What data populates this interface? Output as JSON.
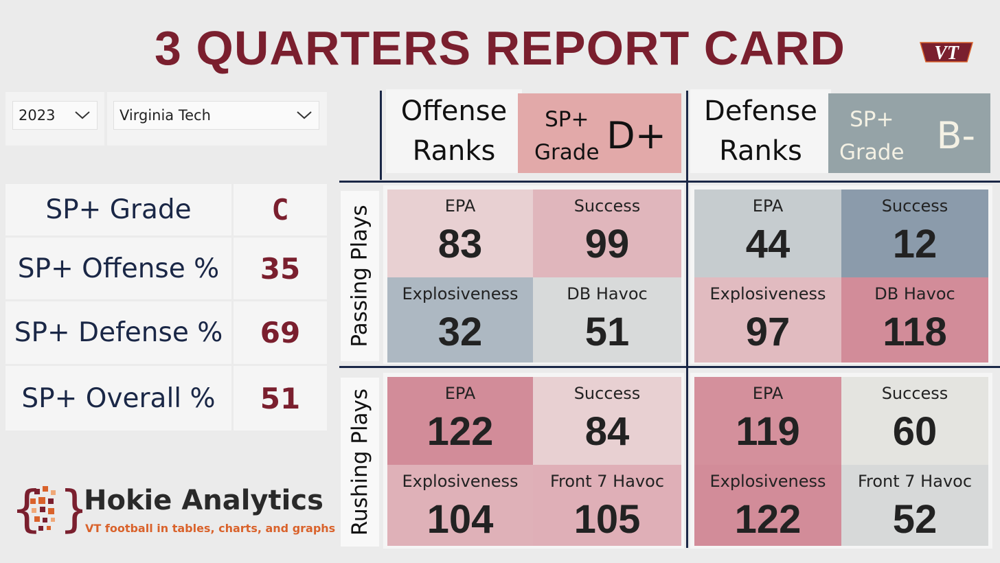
{
  "title": "3 QUARTERS REPORT CARD",
  "logo_text": "VT",
  "slicers": {
    "year": "2023",
    "team": "Virginia Tech"
  },
  "sp_table": [
    {
      "label": "SP+ Grade",
      "value": "C"
    },
    {
      "label": "SP+ Offense %",
      "value": "35"
    },
    {
      "label": "SP+ Defense %",
      "value": "69"
    },
    {
      "label": "SP+ Overall %",
      "value": "51"
    }
  ],
  "offense": {
    "header_line1": "Offense",
    "header_line2": "Ranks",
    "grade_label_1": "SP+",
    "grade_label_2": "Grade",
    "grade": "D+",
    "grade_bg": "#e2a9a9",
    "grade_fg": "#111111"
  },
  "defense": {
    "header_line1": "Defense",
    "header_line2": "Ranks",
    "grade_label_1": "SP+",
    "grade_label_2": "Grade",
    "grade": "B-",
    "grade_bg": "#95a3a7",
    "grade_fg": "#f4f1e4"
  },
  "row_labels": {
    "passing": "Passing Plays",
    "rushing": "Rushing Plays"
  },
  "cells": {
    "off_pass": [
      {
        "label": "EPA",
        "value": "83",
        "bg": "#e8d0d2"
      },
      {
        "label": "Success",
        "value": "99",
        "bg": "#e0b6bc"
      },
      {
        "label": "Explosiveness",
        "value": "32",
        "bg": "#adb8c2"
      },
      {
        "label": "DB Havoc",
        "value": "51",
        "bg": "#d8dada"
      }
    ],
    "def_pass": [
      {
        "label": "EPA",
        "value": "44",
        "bg": "#c6cccf"
      },
      {
        "label": "Success",
        "value": "12",
        "bg": "#8b9bab"
      },
      {
        "label": "Explosiveness",
        "value": "97",
        "bg": "#e1bbc0"
      },
      {
        "label": "DB Havoc",
        "value": "118",
        "bg": "#d28c99"
      }
    ],
    "off_rush": [
      {
        "label": "EPA",
        "value": "122",
        "bg": "#d28c99"
      },
      {
        "label": "Success",
        "value": "84",
        "bg": "#e8d0d2"
      },
      {
        "label": "Explosiveness",
        "value": "104",
        "bg": "#dfb1b8"
      },
      {
        "label": "Front 7 Havoc",
        "value": "105",
        "bg": "#dfafb7"
      }
    ],
    "def_rush": [
      {
        "label": "EPA",
        "value": "119",
        "bg": "#d4909c"
      },
      {
        "label": "Success",
        "value": "60",
        "bg": "#e4e4e0"
      },
      {
        "label": "Explosiveness",
        "value": "122",
        "bg": "#d28c99"
      },
      {
        "label": "Front 7 Havoc",
        "value": "52",
        "bg": "#d7d9d9"
      }
    ]
  },
  "brand": {
    "name": "Hokie Analytics",
    "tagline": "VT football in tables, charts, and graphs",
    "maroon": "#7a1f2e",
    "orange": "#d9622b",
    "navy": "#1a2746"
  }
}
